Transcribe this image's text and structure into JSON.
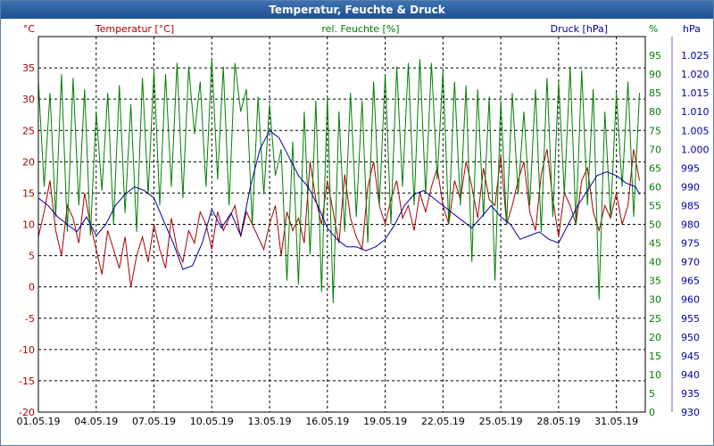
{
  "window": {
    "title": "Temperatur, Feuchte & Druck"
  },
  "chart_data": {
    "type": "line",
    "title": "Temperatur, Feuchte & Druck",
    "grid": true,
    "x_axis": {
      "tick_labels": [
        "01.05.19",
        "04.05.19",
        "07.05.19",
        "10.05.19",
        "13.05.19",
        "16.05.19",
        "19.05.19",
        "22.05.19",
        "25.05.19",
        "28.05.19",
        "31.05.19"
      ],
      "range": [
        0,
        31.5
      ]
    },
    "y_axes": {
      "temperature": {
        "unit_label": "°C",
        "title": "Temperatur [°C]",
        "range": [
          -20,
          40
        ],
        "ticks": [
          -20,
          -15,
          -10,
          -5,
          0,
          5,
          10,
          15,
          20,
          25,
          30,
          35
        ],
        "color": "#aa0000"
      },
      "humidity": {
        "unit_label": "%",
        "title": "rel. Feuchte [%]",
        "range": [
          0,
          100
        ],
        "ticks": [
          0,
          5,
          10,
          15,
          20,
          25,
          30,
          35,
          40,
          45,
          50,
          55,
          60,
          65,
          70,
          75,
          80,
          85,
          90,
          95
        ],
        "color": "#008000"
      },
      "pressure": {
        "unit_label": "hPa",
        "title": "Druck [hPa]",
        "range": [
          930,
          1030
        ],
        "ticks": [
          930,
          935,
          940,
          945,
          950,
          955,
          960,
          965,
          970,
          975,
          980,
          985,
          990,
          995,
          1000,
          1005,
          1010,
          1015,
          1020,
          1025
        ],
        "tick_labels": [
          "930",
          "935",
          "940",
          "945",
          "950",
          "955",
          "960",
          "965",
          "970",
          "975",
          "980",
          "985",
          "990",
          "995",
          "1.000",
          "1.005",
          "1.010",
          "1.015",
          "1.020",
          "1.025"
        ],
        "color": "#0000a0"
      }
    },
    "series": [
      {
        "name": "Temperatur [°C]",
        "axis": "temperature",
        "color": "#aa0000",
        "x": [
          0,
          0.3,
          0.6,
          0.9,
          1.2,
          1.5,
          1.8,
          2.1,
          2.4,
          2.7,
          3.0,
          3.3,
          3.6,
          3.9,
          4.2,
          4.5,
          4.8,
          5.1,
          5.4,
          5.7,
          6.0,
          6.3,
          6.6,
          6.9,
          7.2,
          7.5,
          7.8,
          8.1,
          8.4,
          8.7,
          9.0,
          9.3,
          9.6,
          9.9,
          10.2,
          10.5,
          10.8,
          11.1,
          11.4,
          11.7,
          12.0,
          12.3,
          12.6,
          12.9,
          13.2,
          13.5,
          13.8,
          14.1,
          14.4,
          14.7,
          15.0,
          15.3,
          15.6,
          15.9,
          16.2,
          16.5,
          16.8,
          17.1,
          17.4,
          17.7,
          18.0,
          18.3,
          18.6,
          18.9,
          19.2,
          19.5,
          19.8,
          20.1,
          20.4,
          20.7,
          21.0,
          21.3,
          21.6,
          21.9,
          22.2,
          22.5,
          22.8,
          23.1,
          23.4,
          23.7,
          24.0,
          24.3,
          24.6,
          24.9,
          25.2,
          25.5,
          25.8,
          26.1,
          26.4,
          26.7,
          27.0,
          27.3,
          27.6,
          27.9,
          28.2,
          28.5,
          28.8,
          29.1,
          29.4,
          29.7,
          30.0,
          30.3,
          30.6,
          30.9,
          31.2
        ],
        "values": [
          8,
          12,
          17,
          9,
          5,
          13,
          11,
          7,
          15,
          10,
          6,
          2,
          9,
          6,
          3,
          8,
          0,
          5,
          8,
          4,
          10,
          6,
          3,
          11,
          6,
          4,
          9,
          7,
          12,
          10,
          6,
          12,
          9,
          11,
          13,
          8,
          12,
          10,
          8,
          6,
          10,
          13,
          5,
          12,
          9,
          11,
          7,
          20,
          14,
          10,
          17,
          12,
          7,
          18,
          11,
          8,
          6,
          16,
          20,
          13,
          10,
          14,
          17,
          11,
          13,
          9,
          15,
          12,
          16,
          19,
          13,
          10,
          17,
          14,
          20,
          16,
          11,
          19,
          14,
          13,
          21,
          10,
          13,
          17,
          20,
          12,
          9,
          18,
          22,
          14,
          8,
          15,
          13,
          10,
          17,
          19,
          12,
          9,
          13,
          11,
          15,
          10,
          13,
          22,
          17
        ]
      },
      {
        "name": "rel. Feuchte [%]",
        "axis": "humidity",
        "color": "#008000",
        "x": [
          0,
          0.3,
          0.6,
          0.9,
          1.2,
          1.5,
          1.8,
          2.1,
          2.4,
          2.7,
          3.0,
          3.3,
          3.6,
          3.9,
          4.2,
          4.5,
          4.8,
          5.1,
          5.4,
          5.7,
          6.0,
          6.3,
          6.6,
          6.9,
          7.2,
          7.5,
          7.8,
          8.1,
          8.4,
          8.7,
          9.0,
          9.3,
          9.6,
          9.9,
          10.2,
          10.5,
          10.8,
          11.1,
          11.4,
          11.7,
          12.0,
          12.3,
          12.6,
          12.9,
          13.2,
          13.5,
          13.8,
          14.1,
          14.4,
          14.7,
          15.0,
          15.3,
          15.6,
          15.9,
          16.2,
          16.5,
          16.8,
          17.1,
          17.4,
          17.7,
          18.0,
          18.3,
          18.6,
          18.9,
          19.2,
          19.5,
          19.8,
          20.1,
          20.4,
          20.7,
          21.0,
          21.3,
          21.6,
          21.9,
          22.2,
          22.5,
          22.8,
          23.1,
          23.4,
          23.7,
          24.0,
          24.3,
          24.6,
          24.9,
          25.2,
          25.5,
          25.8,
          26.1,
          26.4,
          26.7,
          27.0,
          27.3,
          27.6,
          27.9,
          28.2,
          28.5,
          28.8,
          29.1,
          29.4,
          29.7,
          30.0,
          30.3,
          30.6,
          30.9,
          31.2
        ],
        "values": [
          88,
          60,
          85,
          52,
          90,
          48,
          89,
          55,
          86,
          47,
          80,
          59,
          85,
          50,
          87,
          53,
          82,
          48,
          89,
          58,
          91,
          55,
          90,
          60,
          93,
          57,
          92,
          74,
          88,
          60,
          94,
          62,
          92,
          55,
          93,
          80,
          86,
          50,
          84,
          58,
          82,
          63,
          70,
          35,
          72,
          34,
          80,
          42,
          83,
          32,
          84,
          29,
          80,
          48,
          85,
          52,
          83,
          45,
          88,
          55,
          90,
          50,
          92,
          60,
          93,
          55,
          94,
          58,
          93,
          62,
          91,
          50,
          88,
          55,
          87,
          40,
          86,
          52,
          84,
          35,
          83,
          50,
          85,
          58,
          80,
          55,
          86,
          48,
          89,
          52,
          88,
          58,
          92,
          50,
          91,
          55,
          86,
          30,
          80,
          52,
          85,
          60,
          88,
          52,
          85
        ]
      },
      {
        "name": "Druck [hPa]",
        "axis": "pressure",
        "color": "#0000a0",
        "x": [
          0,
          0.5,
          1.0,
          1.5,
          2.0,
          2.5,
          3.0,
          3.5,
          4.0,
          4.5,
          5.0,
          5.5,
          6.0,
          6.5,
          7.0,
          7.5,
          8.0,
          8.5,
          9.0,
          9.5,
          10.0,
          10.5,
          11.0,
          11.5,
          12.0,
          12.5,
          13.0,
          13.5,
          14.0,
          14.5,
          15.0,
          15.5,
          16.0,
          16.5,
          17.0,
          17.5,
          18.0,
          18.5,
          19.0,
          19.5,
          20.0,
          20.5,
          21.0,
          21.5,
          22.0,
          22.5,
          23.0,
          23.5,
          24.0,
          24.5,
          25.0,
          25.5,
          26.0,
          26.5,
          27.0,
          27.5,
          28.0,
          28.5,
          29.0,
          29.5,
          30.0,
          30.5,
          31.0,
          31.2
        ],
        "values": [
          987,
          985,
          982,
          980,
          978,
          982,
          977,
          980,
          985,
          988,
          990,
          989,
          987,
          981,
          975,
          968,
          969,
          975,
          984,
          979,
          983,
          977,
          990,
          1000,
          1005,
          1003,
          998,
          993,
          990,
          985,
          979,
          976,
          974,
          974,
          973,
          974,
          976,
          980,
          985,
          988,
          989,
          987,
          985,
          983,
          981,
          979,
          982,
          985,
          982,
          980,
          976,
          977,
          978,
          976,
          975,
          980,
          985,
          989,
          993,
          994,
          993,
          991,
          990,
          988
        ]
      }
    ]
  }
}
